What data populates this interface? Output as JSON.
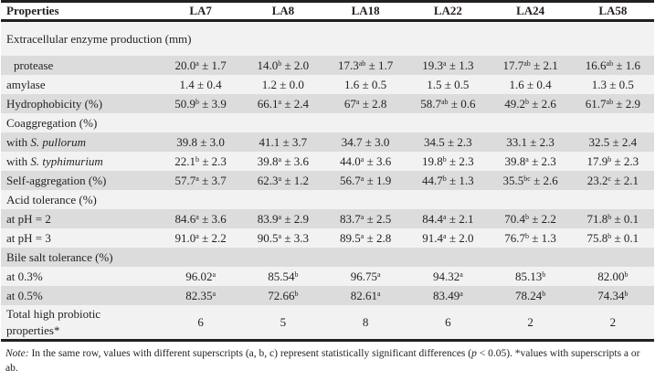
{
  "headers": [
    "Properties",
    "LA7",
    "LA8",
    "LA18",
    "LA22",
    "LA24",
    "LA58"
  ],
  "rows": [
    {
      "label": "Extracellular enzyme production (mm)",
      "cells": []
    },
    {
      "label": "protease",
      "cells": [
        {
          "v": "20.0",
          "s": "a",
          "e": "± 1.7"
        },
        {
          "v": "14.0",
          "s": "b",
          "e": "± 2.0"
        },
        {
          "v": "17.3",
          "s": "ab",
          "e": "± 1.7"
        },
        {
          "v": "19.3",
          "s": "a",
          "e": "± 1.3"
        },
        {
          "v": "17.7",
          "s": "ab",
          "e": "± 2.1"
        },
        {
          "v": "16.6",
          "s": "ab",
          "e": "± 1.6"
        }
      ]
    },
    {
      "label": "amylase",
      "cells": [
        {
          "v": "1.4",
          "s": "",
          "e": "± 0.4"
        },
        {
          "v": "1.2",
          "s": "",
          "e": "± 0.0"
        },
        {
          "v": "1.6",
          "s": "",
          "e": "± 0.5"
        },
        {
          "v": "1.5",
          "s": "",
          "e": "± 0.5"
        },
        {
          "v": "1.6",
          "s": "",
          "e": "± 0.4"
        },
        {
          "v": "1.3",
          "s": "",
          "e": "± 0.5"
        }
      ]
    },
    {
      "label": "Hydrophobicity (%)",
      "cells": [
        {
          "v": "50.9",
          "s": "b",
          "e": "± 3.9"
        },
        {
          "v": "66.1",
          "s": "a",
          "e": "± 2.4"
        },
        {
          "v": "67",
          "s": "a",
          "e": "± 2.8"
        },
        {
          "v": "58.7",
          "s": "ab",
          "e": "± 0.6"
        },
        {
          "v": "49.2",
          "s": "b",
          "e": "± 2.6"
        },
        {
          "v": "61.7",
          "s": "ab",
          "e": "± 2.9"
        }
      ]
    },
    {
      "label": "Coaggregation (%)",
      "cells": []
    },
    {
      "label_pre": "with ",
      "label_it": "S. pullorum",
      "cells": [
        {
          "v": "39.8",
          "s": "",
          "e": "± 3.0"
        },
        {
          "v": "41.1",
          "s": "",
          "e": "± 3.7"
        },
        {
          "v": "34.7",
          "s": "",
          "e": "± 3.0"
        },
        {
          "v": "34.5",
          "s": "",
          "e": "± 2.3"
        },
        {
          "v": "33.1",
          "s": "",
          "e": "± 2.3"
        },
        {
          "v": "32.5",
          "s": "",
          "e": "± 2.4"
        }
      ]
    },
    {
      "label_pre": "with ",
      "label_it": "S. typhimurium",
      "cells": [
        {
          "v": "22.1",
          "s": "b",
          "e": "± 2.3"
        },
        {
          "v": "39.8",
          "s": "a",
          "e": "± 3.6"
        },
        {
          "v": "44.0",
          "s": "a",
          "e": "± 3.6"
        },
        {
          "v": "19.8",
          "s": "b",
          "e": "± 2.3"
        },
        {
          "v": "39.8",
          "s": "a",
          "e": "± 2.3"
        },
        {
          "v": "17.9",
          "s": "b",
          "e": "± 2.3"
        }
      ]
    },
    {
      "label": "Self-aggregation (%)",
      "cells": [
        {
          "v": "57.7",
          "s": "a",
          "e": "± 3.7"
        },
        {
          "v": "62.3",
          "s": "a",
          "e": "± 1.2"
        },
        {
          "v": "56.7",
          "s": "a",
          "e": "± 1.9"
        },
        {
          "v": "44.7",
          "s": "b",
          "e": "± 1.3"
        },
        {
          "v": "35.5",
          "s": "bc",
          "e": "± 2.6"
        },
        {
          "v": "23.2",
          "s": "c",
          "e": "± 2.1"
        }
      ]
    },
    {
      "label": "Acid tolerance (%)",
      "cells": []
    },
    {
      "label": "at pH = 2",
      "cells": [
        {
          "v": "84.6",
          "s": "a",
          "e": "± 3.6"
        },
        {
          "v": "83.9",
          "s": "a",
          "e": "± 2.9"
        },
        {
          "v": "83.7",
          "s": "a",
          "e": "± 2.5"
        },
        {
          "v": "84.4",
          "s": "a",
          "e": "± 2.1"
        },
        {
          "v": "70.4",
          "s": "b",
          "e": "± 2.2"
        },
        {
          "v": "71.8",
          "s": "b",
          "e": "± 0.1"
        }
      ]
    },
    {
      "label": "at pH = 3",
      "cells": [
        {
          "v": "91.0",
          "s": "a",
          "e": "± 2.2"
        },
        {
          "v": "90.5",
          "s": "a",
          "e": "± 3.3"
        },
        {
          "v": "89.5",
          "s": "a",
          "e": "± 2.8"
        },
        {
          "v": "91.4",
          "s": "a",
          "e": "± 2.0"
        },
        {
          "v": "76.7",
          "s": "b",
          "e": "± 1.3"
        },
        {
          "v": "75.8",
          "s": "b",
          "e": "± 0.1"
        }
      ]
    },
    {
      "label": "Bile salt tolerance (%)",
      "cells": []
    },
    {
      "label": "at 0.3%",
      "cells": [
        {
          "v": "96.02",
          "s": "a",
          "e": ""
        },
        {
          "v": "85.54",
          "s": "b",
          "e": ""
        },
        {
          "v": "96.75",
          "s": "a",
          "e": ""
        },
        {
          "v": "94.32",
          "s": "a",
          "e": ""
        },
        {
          "v": "85.13",
          "s": "b",
          "e": ""
        },
        {
          "v": "82.00",
          "s": "b",
          "e": ""
        }
      ]
    },
    {
      "label": "at 0.5%",
      "cells": [
        {
          "v": "82.35",
          "s": "a",
          "e": ""
        },
        {
          "v": "72.66",
          "s": "b",
          "e": ""
        },
        {
          "v": "82.61",
          "s": "a",
          "e": ""
        },
        {
          "v": "83.49",
          "s": "a",
          "e": ""
        },
        {
          "v": "78.24",
          "s": "b",
          "e": ""
        },
        {
          "v": "74.34",
          "s": "b",
          "e": ""
        }
      ]
    },
    {
      "label": "Total high probiotic properties*",
      "cells": [
        {
          "v": "6",
          "s": "",
          "e": ""
        },
        {
          "v": "5",
          "s": "",
          "e": ""
        },
        {
          "v": "8",
          "s": "",
          "e": ""
        },
        {
          "v": "6",
          "s": "",
          "e": ""
        },
        {
          "v": "2",
          "s": "",
          "e": ""
        },
        {
          "v": "2",
          "s": "",
          "e": ""
        }
      ]
    }
  ],
  "note": {
    "label": "Note:",
    "text_1": " In the same row, values with different superscripts (a, b, c) represent statistically significant differences (",
    "p": "p",
    "text_2": " < 0.05). *values with superscripts a or ab."
  }
}
